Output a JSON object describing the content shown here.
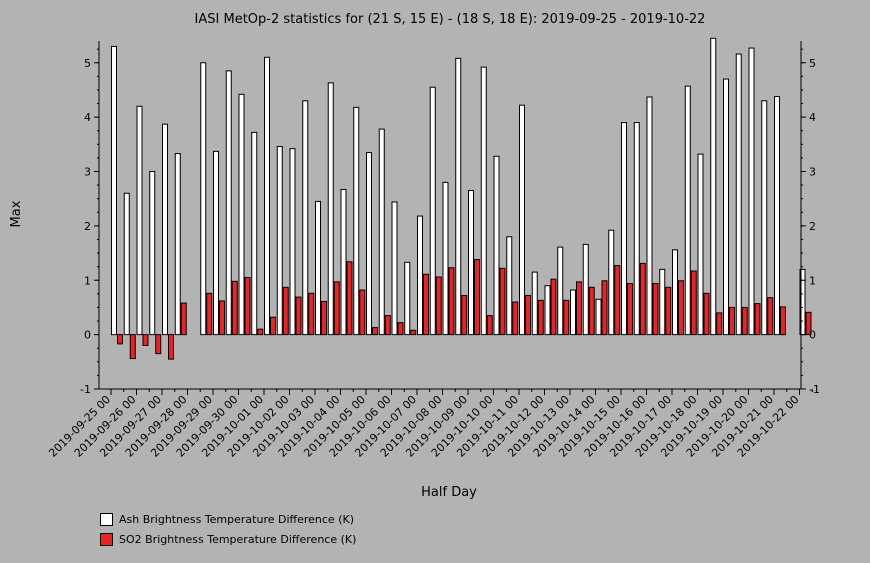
{
  "chart_data": {
    "type": "bar",
    "title": "IASI MetOp-2 statistics for (21 S, 15 E) - (18 S, 18 E): 2019-09-25 - 2019-10-22",
    "xlabel": "Half Day",
    "ylabel": "Max",
    "ylim": [
      -1,
      5.4
    ],
    "yticks": [
      -1,
      0,
      1,
      2,
      3,
      4,
      5
    ],
    "x": [
      "2019-09-25 00",
      "2019-09-25 12",
      "2019-09-26 00",
      "2019-09-26 12",
      "2019-09-27 00",
      "2019-09-27 12",
      "2019-09-28 00",
      "2019-09-28 12",
      "2019-09-29 00",
      "2019-09-29 12",
      "2019-09-30 00",
      "2019-09-30 12",
      "2019-10-01 00",
      "2019-10-01 12",
      "2019-10-02 00",
      "2019-10-02 12",
      "2019-10-03 00",
      "2019-10-03 12",
      "2019-10-04 00",
      "2019-10-04 12",
      "2019-10-05 00",
      "2019-10-05 12",
      "2019-10-06 00",
      "2019-10-06 12",
      "2019-10-07 00",
      "2019-10-07 12",
      "2019-10-08 00",
      "2019-10-08 12",
      "2019-10-09 00",
      "2019-10-09 12",
      "2019-10-10 00",
      "2019-10-10 12",
      "2019-10-11 00",
      "2019-10-11 12",
      "2019-10-12 00",
      "2019-10-12 12",
      "2019-10-13 00",
      "2019-10-13 12",
      "2019-10-14 00",
      "2019-10-14 12",
      "2019-10-15 00",
      "2019-10-15 12",
      "2019-10-16 00",
      "2019-10-16 12",
      "2019-10-17 00",
      "2019-10-17 12",
      "2019-10-18 00",
      "2019-10-18 12",
      "2019-10-19 00",
      "2019-10-19 12",
      "2019-10-20 00",
      "2019-10-20 12",
      "2019-10-21 00",
      "2019-10-21 12",
      "2019-10-22 00"
    ],
    "tick_labels": [
      "2019-09-25 00",
      "2019-09-26 00",
      "2019-09-27 00",
      "2019-09-28 00",
      "2019-09-29 00",
      "2019-09-30 00",
      "2019-10-01 00",
      "2019-10-02 00",
      "2019-10-03 00",
      "2019-10-04 00",
      "2019-10-05 00",
      "2019-10-06 00",
      "2019-10-07 00",
      "2019-10-08 00",
      "2019-10-09 00",
      "2019-10-10 00",
      "2019-10-11 00",
      "2019-10-12 00",
      "2019-10-13 00",
      "2019-10-14 00",
      "2019-10-15 00",
      "2019-10-16 00",
      "2019-10-17 00",
      "2019-10-18 00",
      "2019-10-19 00",
      "2019-10-20 00",
      "2019-10-21 00",
      "2019-10-22 00"
    ],
    "series": [
      {
        "name": "Ash Brightness Temperature Difference (K)",
        "color": "#ffffff",
        "values": [
          5.3,
          2.6,
          4.2,
          3.0,
          3.87,
          3.33,
          null,
          5.0,
          3.37,
          4.85,
          4.42,
          3.72,
          5.1,
          3.46,
          3.42,
          4.3,
          2.45,
          4.63,
          2.67,
          4.18,
          3.35,
          3.78,
          2.44,
          1.33,
          2.18,
          4.55,
          2.8,
          5.08,
          2.65,
          4.92,
          3.28,
          1.8,
          4.22,
          1.15,
          0.9,
          1.61,
          0.82,
          1.66,
          0.65,
          1.92,
          3.9,
          3.9,
          4.37,
          1.2,
          1.56,
          4.57,
          3.32,
          5.45,
          4.7,
          5.16,
          5.27,
          4.3,
          4.38,
          null,
          1.2
        ]
      },
      {
        "name": "SO2 Brightness Temperature Difference (K)",
        "color": "#ee2222",
        "values": [
          -0.17,
          -0.44,
          -0.2,
          -0.35,
          -0.45,
          0.58,
          null,
          0.76,
          0.62,
          0.98,
          1.05,
          0.1,
          0.32,
          0.87,
          0.69,
          0.76,
          0.61,
          0.97,
          1.34,
          0.82,
          0.13,
          0.35,
          0.22,
          0.08,
          1.11,
          1.06,
          1.23,
          0.72,
          1.38,
          0.35,
          1.22,
          0.6,
          0.72,
          0.63,
          1.02,
          0.63,
          0.97,
          0.87,
          0.99,
          1.27,
          0.94,
          1.31,
          0.94,
          0.87,
          0.99,
          1.17,
          0.76,
          0.4,
          0.5,
          0.5,
          0.57,
          0.68,
          0.51,
          null,
          0.41
        ]
      }
    ],
    "legend_position": "bottom-left",
    "grid": false
  }
}
